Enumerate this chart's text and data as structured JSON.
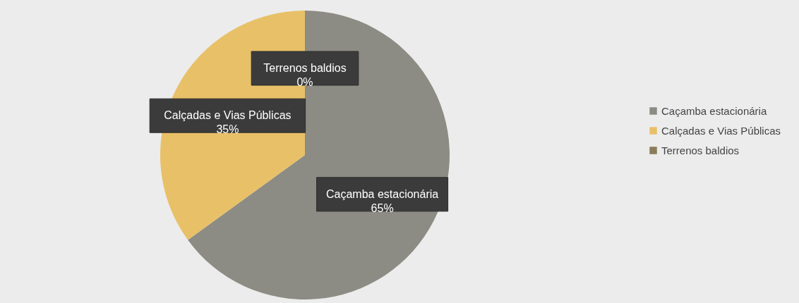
{
  "chart_data": {
    "type": "pie",
    "categories": [
      "Caçamba estacionária",
      "Calçadas e Vias Públicas",
      "Terrenos baldios"
    ],
    "values": [
      65,
      35,
      0
    ],
    "colors": [
      "#8c8c84",
      "#e8c068",
      "#8b7d5a"
    ],
    "value_labels": [
      "65%",
      "35%",
      "0%"
    ],
    "legend": "right"
  }
}
